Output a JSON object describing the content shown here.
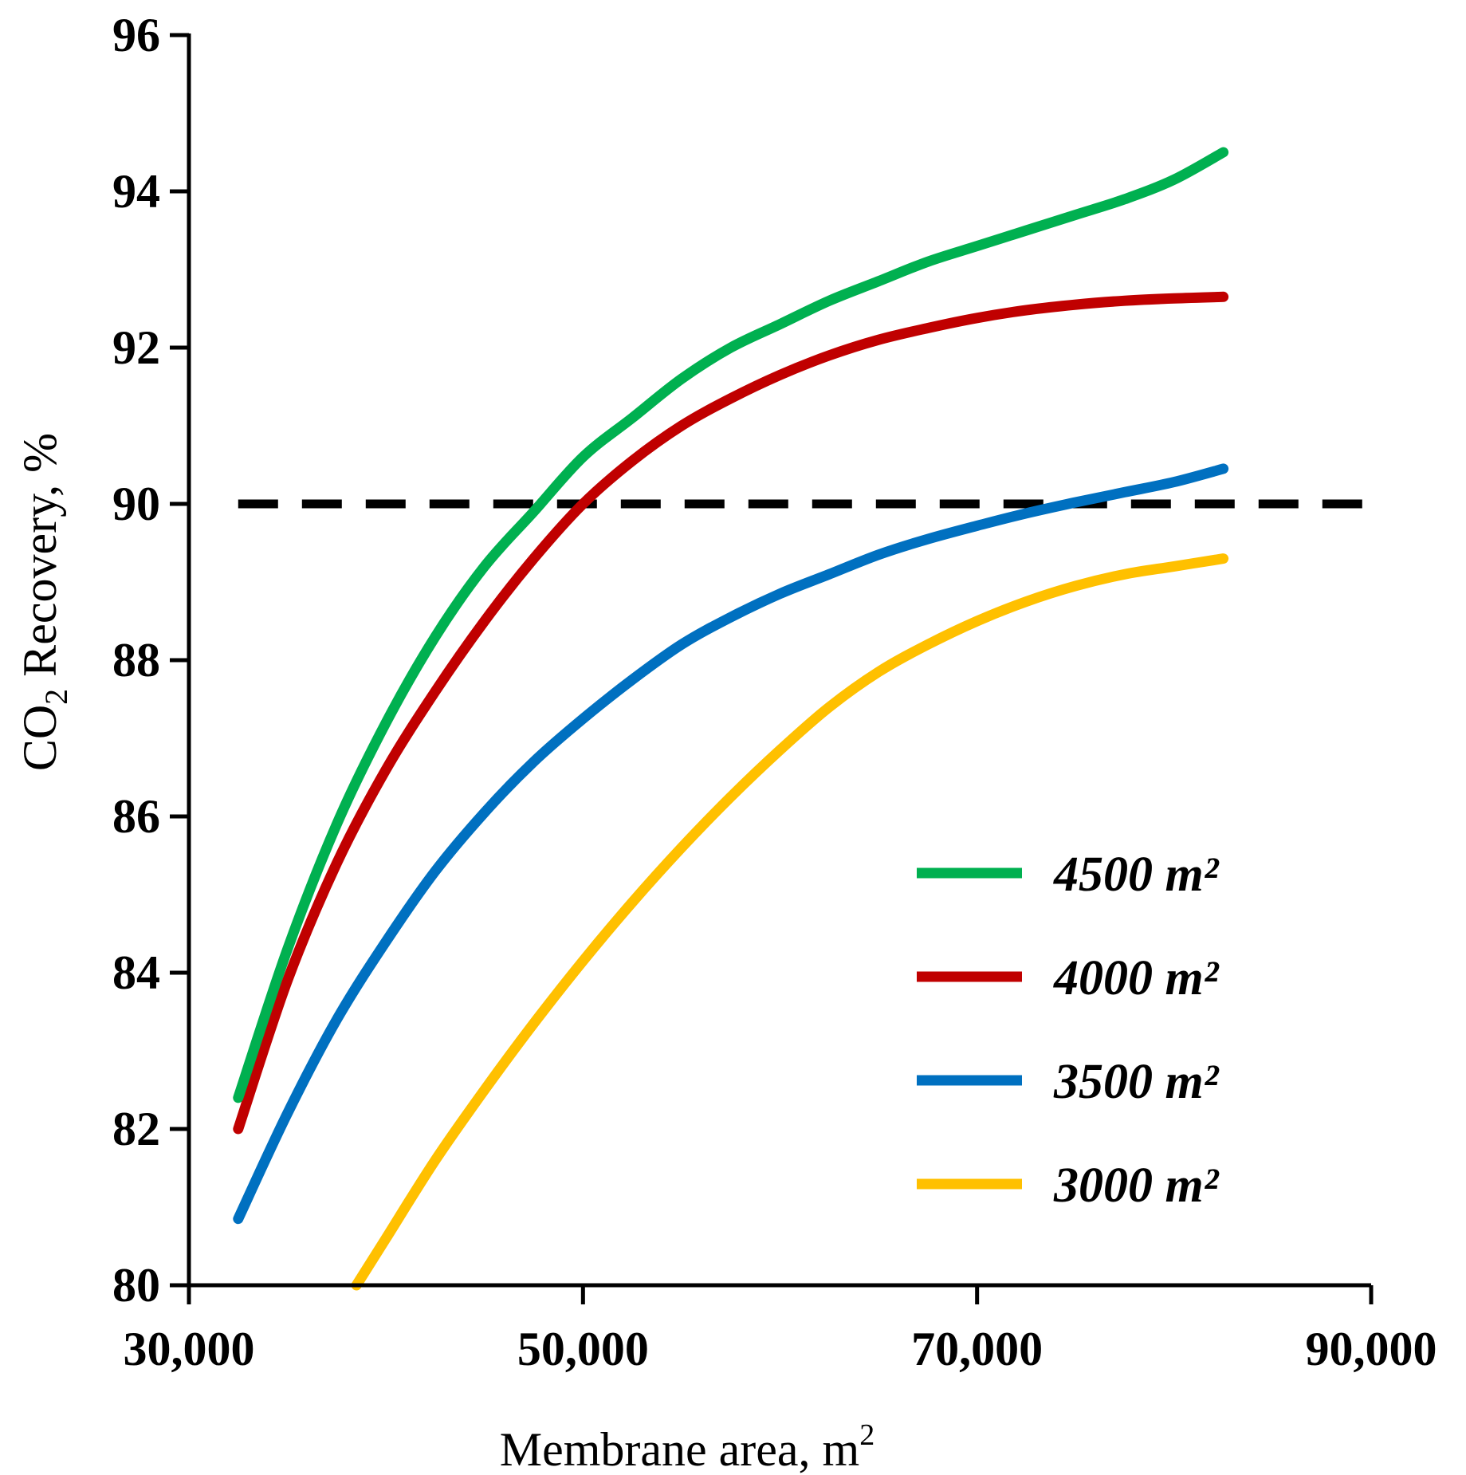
{
  "chart_data": {
    "type": "line",
    "xlabel_main": "Membrane area, m",
    "xlabel_sup": "2",
    "ylabel_pre": "CO",
    "ylabel_sub": "2",
    "ylabel_post": " Recovery, %",
    "xlim": [
      30000,
      90000
    ],
    "ylim": [
      80,
      96
    ],
    "x_ticks": [
      30000,
      50000,
      70000,
      90000
    ],
    "x_tick_labels": [
      "30,000",
      "50,000",
      "70,000",
      "90,000"
    ],
    "y_ticks": [
      80,
      82,
      84,
      86,
      88,
      90,
      92,
      94,
      96
    ],
    "y_tick_labels": [
      "80",
      "82",
      "84",
      "86",
      "88",
      "90",
      "92",
      "94",
      "96"
    ],
    "reference_line": {
      "y": 90,
      "x_start": 32500,
      "x_end": 90000,
      "style": "dashed",
      "color": "#000000"
    },
    "series": [
      {
        "name": "4500 m²",
        "color": "#00B050",
        "x": [
          32500,
          35000,
          37500,
          40000,
          42500,
          45000,
          47500,
          50000,
          52500,
          55000,
          57500,
          60000,
          62500,
          65000,
          67500,
          70000,
          72500,
          75000,
          77500,
          80000,
          82500
        ],
        "y": [
          82.4,
          84.3,
          85.9,
          87.2,
          88.3,
          89.2,
          89.9,
          90.6,
          91.1,
          91.6,
          92.0,
          92.3,
          92.6,
          92.85,
          93.1,
          93.3,
          93.5,
          93.7,
          93.9,
          94.15,
          94.5
        ]
      },
      {
        "name": "4000 m²",
        "color": "#C00000",
        "x": [
          32500,
          35000,
          37500,
          40000,
          42500,
          45000,
          47500,
          50000,
          52500,
          55000,
          57500,
          60000,
          62500,
          65000,
          67500,
          70000,
          72500,
          75000,
          77500,
          80000,
          82500
        ],
        "y": [
          82.0,
          83.9,
          85.4,
          86.6,
          87.6,
          88.5,
          89.3,
          90.0,
          90.55,
          91.0,
          91.35,
          91.65,
          91.9,
          92.1,
          92.25,
          92.38,
          92.48,
          92.55,
          92.6,
          92.63,
          92.65
        ]
      },
      {
        "name": "3500 m²",
        "color": "#0070C0",
        "x": [
          32500,
          35000,
          37500,
          40000,
          42500,
          45000,
          47500,
          50000,
          52500,
          55000,
          57500,
          60000,
          62500,
          65000,
          67500,
          70000,
          72500,
          75000,
          77500,
          80000,
          82500
        ],
        "y": [
          80.85,
          82.2,
          83.4,
          84.4,
          85.3,
          86.05,
          86.7,
          87.25,
          87.75,
          88.2,
          88.55,
          88.85,
          89.1,
          89.35,
          89.55,
          89.72,
          89.88,
          90.02,
          90.15,
          90.28,
          90.45
        ]
      },
      {
        "name": "3000 m²",
        "color": "#FFC000",
        "x": [
          38500,
          40000,
          42500,
          45000,
          47500,
          50000,
          52500,
          55000,
          57500,
          60000,
          62500,
          65000,
          67500,
          70000,
          72500,
          75000,
          77500,
          80000,
          82500
        ],
        "y": [
          80.0,
          80.6,
          81.6,
          82.5,
          83.35,
          84.15,
          84.9,
          85.6,
          86.25,
          86.85,
          87.4,
          87.85,
          88.2,
          88.5,
          88.75,
          88.95,
          89.1,
          89.2,
          89.3
        ]
      }
    ],
    "legend": {
      "placement": "lower-right",
      "entries": [
        "4500 m²",
        "4000 m²",
        "3500 m²",
        "3000 m²"
      ]
    }
  }
}
